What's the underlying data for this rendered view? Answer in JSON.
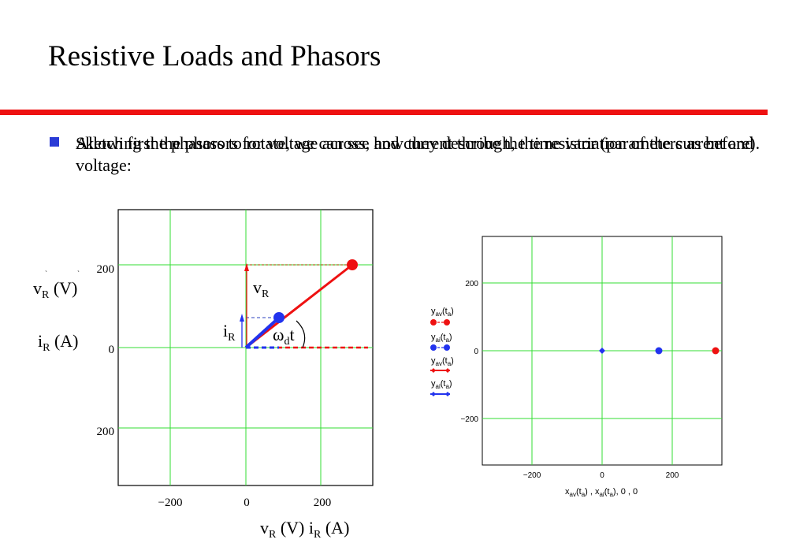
{
  "slide": {
    "title": "Resistive Loads and Phasors",
    "bullet_texts": [
      "Allowing the phasors to rotate, we can see how they describe the time variation of the current and voltage:",
      "Sketch first the phasors for voltage across, and current through, the resistor (parameters as before)."
    ]
  },
  "left_plot": {
    "y_ticks": [
      "200",
      "0",
      "200"
    ],
    "x_ticks": [
      "−200",
      "0",
      "200"
    ],
    "ylabel_v": "v",
    "ylabel_v_sub": "R",
    "ylabel_v_unit": " (V)",
    "ylabel_i": "i",
    "ylabel_i_sub": "R",
    "ylabel_i_unit": " (A)",
    "xlabel_v": "v",
    "xlabel_v_sub": "R",
    "xlabel_v_unit": " (V) ",
    "xlabel_i": "i",
    "xlabel_i_sub": "R",
    "xlabel_i_unit": " (A)",
    "label_vR": "v",
    "label_vR_sub": "R",
    "label_iR": "i",
    "label_iR_sub": "R",
    "label_omega": "ω",
    "label_omega_sub": "d",
    "label_omega_t": "t",
    "colors": {
      "grid": "#33dd33",
      "voltage": "#ee1111",
      "current": "#2233ee"
    }
  },
  "right_plot": {
    "y_ticks": [
      "200",
      "0",
      "−200"
    ],
    "x_ticks": [
      "−200",
      "0",
      "200"
    ],
    "legend": [
      {
        "y": "y",
        "sub": "av",
        "arg": "t",
        "arg_sub": "a",
        "color": "#ee1111",
        "style": "dots"
      },
      {
        "y": "y",
        "sub": "ai",
        "arg": "t",
        "arg_sub": "a",
        "color": "#2233ee",
        "style": "dots"
      },
      {
        "y": "y",
        "sub": "av",
        "arg": "t",
        "arg_sub": "a",
        "color": "#ee1111",
        "style": "line"
      },
      {
        "y": "y",
        "sub": "ai",
        "arg": "t",
        "arg_sub": "a",
        "color": "#2233ee",
        "style": "line"
      }
    ],
    "xlabel": "x",
    "xlabel_s1": "av",
    "xlabel_t1": "t",
    "xlabel_a1": "a",
    "xlabel_s2": "ai",
    "xlabel_t2": "t",
    "xlabel_a2": "a",
    "xlabel_tail": ", 0 , 0"
  }
}
